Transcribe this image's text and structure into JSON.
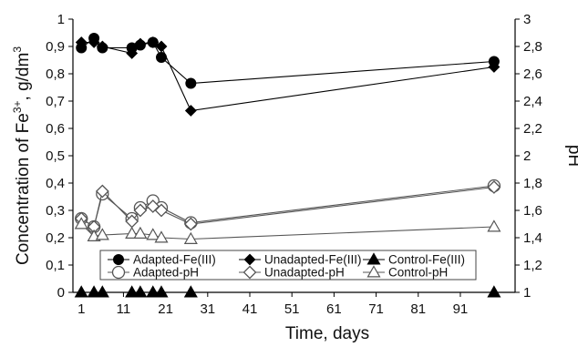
{
  "chart_data": {
    "type": "line",
    "xlabel": "Time, days",
    "ylabel_left": "Concentration of Fe3+, g/dm3",
    "ylabel_left_parts": {
      "main": "Concentration of Fe",
      "sup1": "3+",
      "mid": ", g/dm",
      "sup2": "3"
    },
    "ylabel_right": "pH",
    "xlim": [
      -1,
      104
    ],
    "ylim_left": [
      0,
      1
    ],
    "ylim_right": [
      1,
      3
    ],
    "x_ticks": [
      "1",
      "11",
      "21",
      "31",
      "41",
      "51",
      "61",
      "71",
      "81",
      "91"
    ],
    "y_left_ticks": [
      "0",
      "0,1",
      "0,2",
      "0,3",
      "0,4",
      "0,5",
      "0,6",
      "0,7",
      "0,8",
      "0,9",
      "1"
    ],
    "y_right_ticks": [
      "1",
      "1,2",
      "1,4",
      "1,6",
      "1,8",
      "2",
      "2,2",
      "2,4",
      "2,6",
      "2,8",
      "3"
    ],
    "grid": false,
    "legend_position": "bottom-center",
    "series": [
      {
        "name": "Adapted-Fe(III)",
        "axis": "left",
        "marker": "filled-circle",
        "color": "#000000",
        "x": [
          1,
          4,
          6,
          13,
          15,
          18,
          20,
          27,
          99
        ],
        "y": [
          0.895,
          0.93,
          0.895,
          0.895,
          0.905,
          0.915,
          0.86,
          0.765,
          0.845
        ]
      },
      {
        "name": "Unadapted-Fe(III)",
        "axis": "left",
        "marker": "filled-diamond",
        "color": "#000000",
        "x": [
          1,
          4,
          6,
          13,
          15,
          18,
          20,
          27,
          99
        ],
        "y": [
          0.915,
          0.915,
          0.9,
          0.875,
          0.91,
          0.915,
          0.9,
          0.665,
          0.825
        ]
      },
      {
        "name": "Control-Fe(III)",
        "axis": "left",
        "marker": "filled-triangle",
        "color": "#000000",
        "x": [
          1,
          4,
          6,
          13,
          15,
          18,
          20,
          27,
          99
        ],
        "y": [
          0,
          0,
          0,
          0,
          0,
          0,
          0,
          0,
          0
        ]
      },
      {
        "name": "Adapted-pH",
        "axis": "right",
        "marker": "open-circle",
        "color": "#555555",
        "x": [
          1,
          4,
          6,
          13,
          15,
          18,
          20,
          27,
          99
        ],
        "y": [
          1.54,
          1.48,
          1.72,
          1.54,
          1.62,
          1.67,
          1.62,
          1.51,
          1.78
        ]
      },
      {
        "name": "Unadapted-pH",
        "axis": "right",
        "marker": "open-diamond",
        "color": "#555555",
        "x": [
          1,
          4,
          6,
          13,
          15,
          18,
          20,
          27,
          99
        ],
        "y": [
          1.54,
          1.48,
          1.74,
          1.52,
          1.6,
          1.63,
          1.6,
          1.5,
          1.77
        ]
      },
      {
        "name": "Control-pH",
        "axis": "right",
        "marker": "open-triangle",
        "color": "#555555",
        "x": [
          1,
          4,
          6,
          13,
          15,
          18,
          20,
          27,
          99
        ],
        "y": [
          1.5,
          1.41,
          1.42,
          1.43,
          1.43,
          1.42,
          1.4,
          1.39,
          1.48
        ]
      }
    ]
  }
}
